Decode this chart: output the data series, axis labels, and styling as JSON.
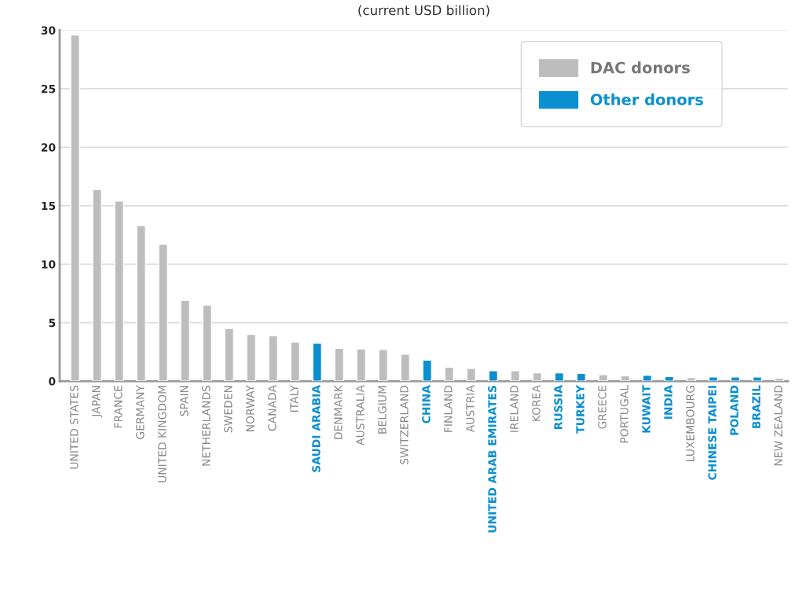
{
  "chart_data": {
    "type": "bar",
    "subtitle": "(current USD billion)",
    "categories": [
      "UNITED STATES",
      "JAPAN",
      "FRANCE",
      "GERMANY",
      "UNITED KINGDOM",
      "SPAIN",
      "NETHERLANDS",
      "SWEDEN",
      "NORWAY",
      "CANADA",
      "ITALY",
      "SAUDI ARABIA",
      "DENMARK",
      "AUSTRALIA",
      "BELGIUM",
      "SWITZERLAND",
      "CHINA",
      "FINLAND",
      "AUSTRIA",
      "UNITED ARAB EMIRATES",
      "IRELAND",
      "KOREA",
      "RUSSIA",
      "TURKEY",
      "GREECE",
      "PORTUGAL",
      "KUWAIT",
      "INDIA",
      "LUXEMBOURG",
      "CHINESE TAIPEI",
      "POLAND",
      "BRAZIL",
      "NEW ZEALAND"
    ],
    "series": [
      {
        "name": "DAC donors",
        "color": "#bdbdbd",
        "values": [
          29.6,
          16.4,
          15.4,
          13.3,
          11.7,
          6.9,
          6.5,
          4.5,
          4.0,
          3.9,
          3.35,
          null,
          2.8,
          2.75,
          2.7,
          2.3,
          null,
          1.2,
          1.1,
          null,
          0.9,
          0.7,
          null,
          null,
          0.55,
          0.45,
          null,
          null,
          0.3,
          null,
          null,
          null,
          0.25
        ]
      },
      {
        "name": "Other donors",
        "color": "#0a8fd0",
        "values": [
          null,
          null,
          null,
          null,
          null,
          null,
          null,
          null,
          null,
          null,
          null,
          3.25,
          null,
          null,
          null,
          null,
          1.8,
          null,
          null,
          0.9,
          null,
          null,
          0.7,
          0.65,
          null,
          null,
          0.5,
          0.4,
          null,
          0.35,
          0.35,
          0.35,
          null
        ]
      }
    ],
    "ylim": [
      0,
      30
    ],
    "yticks": [
      0,
      5,
      10,
      15,
      20,
      25,
      30
    ],
    "grid": "y",
    "legend": "top right"
  }
}
